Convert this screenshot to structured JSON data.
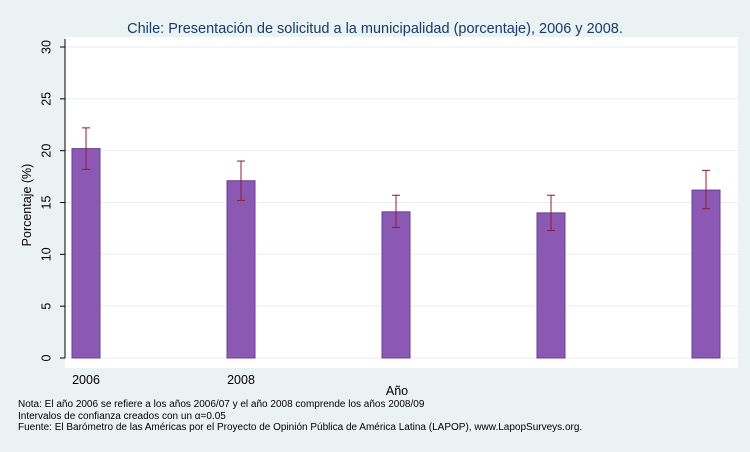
{
  "chart_data": {
    "type": "bar",
    "title": "Chile: Presentación de solicitud a la municipalidad (porcentaje), 2006 y 2008.",
    "xlabel": "Año",
    "ylabel": "Porcentaje (%)",
    "ylim": [
      0,
      30
    ],
    "yticks": [
      0,
      5,
      10,
      15,
      20,
      25,
      30
    ],
    "categories": [
      "2006",
      "2008",
      "",
      "",
      ""
    ],
    "values": [
      20.2,
      17.1,
      14.1,
      14.0,
      16.2
    ],
    "ci_low": [
      18.2,
      15.2,
      12.6,
      12.3,
      14.4
    ],
    "ci_high": [
      22.2,
      19.0,
      15.7,
      15.7,
      18.1
    ],
    "grid": true,
    "colors": {
      "bar": "#8b59b3",
      "bar_edge": "#6a3f96",
      "error_bar": "#8c1c2e",
      "plot_bg": "#ffffff",
      "page_bg": "#eaf2f3",
      "grid": "#e8eef0",
      "title": "#1a3a6a"
    }
  },
  "notes": {
    "line1": "Nota: El año 2006 se refiere a los años 2006/07 y el año 2008 comprende los años 2008/09",
    "line2": "Intervalos de confianza creados con un α=0.05",
    "line3": "Fuente: El Barómetro de las Américas por el Proyecto de Opinión Pública de América Latina (LAPOP), www.LapopSurveys.org."
  }
}
